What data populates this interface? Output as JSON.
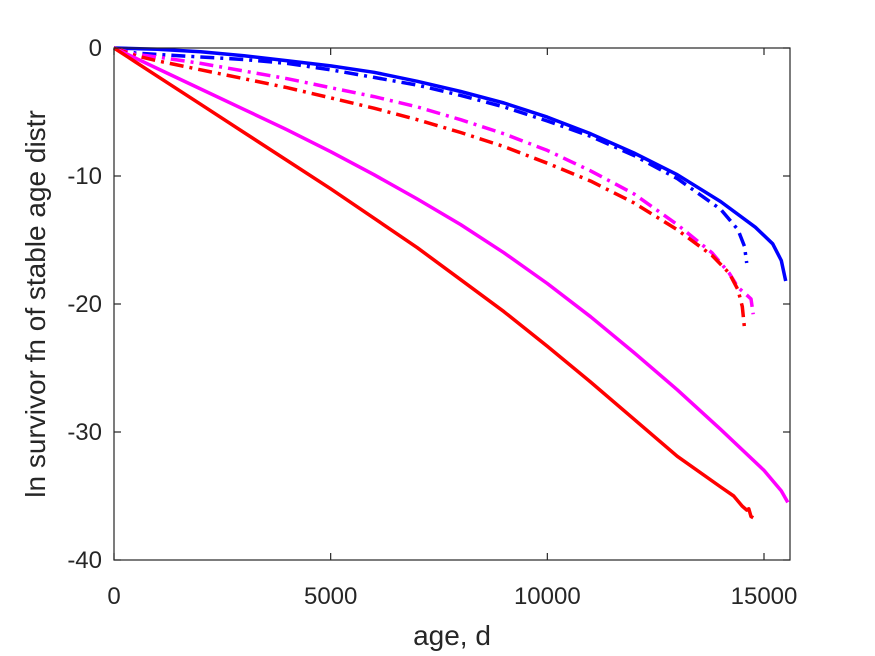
{
  "chart_data": {
    "type": "line",
    "title": "",
    "xlabel": "age, d",
    "ylabel": "ln survivor fn of stable age distr",
    "xlim": [
      0,
      15600
    ],
    "ylim": [
      -40,
      0
    ],
    "xticks": [
      0,
      5000,
      10000,
      15000
    ],
    "yticks": [
      0,
      -10,
      -20,
      -30,
      -40
    ],
    "xtick_labels": [
      "0",
      "5000",
      "10000",
      "15000"
    ],
    "ytick_labels": [
      "0",
      "-10",
      "-20",
      "-30",
      "-40"
    ],
    "grid": false,
    "legend": "none",
    "series": [
      {
        "color": "#0000ff",
        "style": "solid",
        "x": [
          0,
          1000,
          2000,
          3000,
          4000,
          5000,
          6000,
          7000,
          8000,
          9000,
          10000,
          11000,
          12000,
          13000,
          14000,
          14800,
          15200,
          15400,
          15500
        ],
        "y": [
          0,
          -0.1,
          -0.3,
          -0.6,
          -1.0,
          -1.4,
          -1.9,
          -2.6,
          -3.4,
          -4.3,
          -5.4,
          -6.7,
          -8.2,
          -9.9,
          -12.0,
          -14.0,
          -15.3,
          -16.6,
          -18.2
        ]
      },
      {
        "color": "#0000ff",
        "style": "dashdot",
        "x": [
          0,
          500,
          1000,
          2000,
          3000,
          4000,
          5000,
          6000,
          7000,
          8000,
          9000,
          10000,
          11000,
          12000,
          13000,
          14000,
          14400,
          14550,
          14600
        ],
        "y": [
          0,
          -0.4,
          -0.5,
          -0.7,
          -0.9,
          -1.2,
          -1.7,
          -2.3,
          -2.9,
          -3.7,
          -4.6,
          -5.7,
          -6.9,
          -8.4,
          -10.2,
          -12.6,
          -14.2,
          -15.5,
          -16.8
        ]
      },
      {
        "color": "#ff00ff",
        "style": "dashdot",
        "x": [
          0,
          500,
          1000,
          2000,
          3000,
          4000,
          5000,
          6000,
          7000,
          8000,
          9000,
          10000,
          11000,
          12000,
          13000,
          13800,
          14200,
          14400,
          14600,
          14700,
          14750
        ],
        "y": [
          0,
          -0.5,
          -0.7,
          -1.2,
          -1.8,
          -2.4,
          -3.1,
          -3.8,
          -4.6,
          -5.6,
          -6.7,
          -8.0,
          -9.6,
          -11.4,
          -13.8,
          -16.0,
          -17.6,
          -18.7,
          -19.3,
          -19.6,
          -20.8
        ]
      },
      {
        "color": "#ff0000",
        "style": "dashdot",
        "x": [
          0,
          500,
          1000,
          2000,
          3000,
          4000,
          5000,
          6000,
          7000,
          8000,
          9000,
          10000,
          11000,
          12000,
          13000,
          13800,
          14200,
          14400,
          14500,
          14550
        ],
        "y": [
          0,
          -0.6,
          -1.0,
          -1.7,
          -2.4,
          -3.1,
          -3.9,
          -4.7,
          -5.6,
          -6.6,
          -7.7,
          -9.0,
          -10.4,
          -12.1,
          -14.2,
          -16.2,
          -17.6,
          -18.9,
          -20.2,
          -21.9
        ]
      },
      {
        "color": "#ff00ff",
        "style": "solid",
        "x": [
          0,
          500,
          1000,
          2000,
          3000,
          4000,
          5000,
          6000,
          7000,
          8000,
          9000,
          10000,
          11000,
          12000,
          13000,
          14000,
          15000,
          15400,
          15550
        ],
        "y": [
          0,
          -0.8,
          -1.6,
          -3.2,
          -4.8,
          -6.4,
          -8.1,
          -9.9,
          -11.8,
          -13.8,
          -16.0,
          -18.4,
          -21.0,
          -23.8,
          -26.7,
          -29.8,
          -33.0,
          -34.6,
          -35.5
        ]
      },
      {
        "color": "#ff0000",
        "style": "solid",
        "x": [
          0,
          500,
          1000,
          2000,
          3000,
          4000,
          5000,
          6000,
          7000,
          8000,
          9000,
          10000,
          11000,
          12000,
          13000,
          14000,
          14300,
          14500,
          14600,
          14650,
          14700,
          14750
        ],
        "y": [
          0,
          -1.1,
          -2.2,
          -4.4,
          -6.6,
          -8.8,
          -11.0,
          -13.3,
          -15.6,
          -18.1,
          -20.6,
          -23.3,
          -26.1,
          -29.0,
          -31.9,
          -34.3,
          -35.0,
          -35.8,
          -36.1,
          -36.0,
          -36.6,
          -36.7
        ]
      }
    ]
  }
}
